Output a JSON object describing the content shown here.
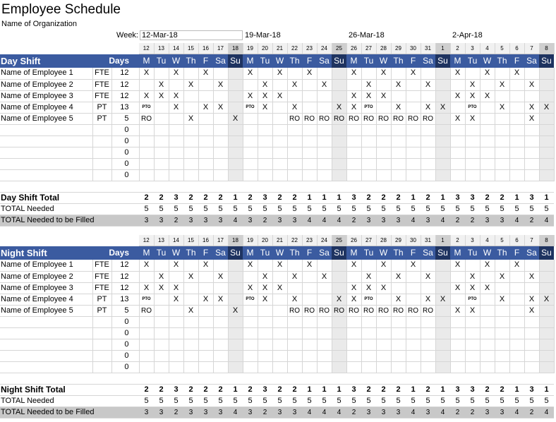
{
  "title": "Employee Schedule",
  "organization": "Name of Organization",
  "week_label": "Week:",
  "week_start": "12-Mar-18",
  "week_dates": [
    "19-Mar-18",
    "26-Mar-18",
    "2-Apr-18"
  ],
  "day_numbers": [
    "12",
    "13",
    "14",
    "15",
    "16",
    "17",
    "18",
    "19",
    "20",
    "21",
    "22",
    "23",
    "24",
    "25",
    "26",
    "27",
    "28",
    "29",
    "30",
    "31",
    "1",
    "2",
    "3",
    "4",
    "5",
    "6",
    "7",
    "8"
  ],
  "day_letters": [
    "M",
    "Tu",
    "W",
    "Th",
    "F",
    "Sa",
    "Su",
    "M",
    "Tu",
    "W",
    "Th",
    "F",
    "Sa",
    "Su",
    "M",
    "Tu",
    "W",
    "Th",
    "F",
    "Sa",
    "Su",
    "M",
    "Tu",
    "W",
    "Th",
    "F",
    "Sa",
    "Su"
  ],
  "weekend_day_numbers": [
    "18",
    "25",
    "1",
    "8"
  ],
  "header_weekend_letters_index": [
    6,
    13,
    20,
    27
  ],
  "days_label": "Days",
  "shifts": [
    {
      "name": "Day Shift",
      "employees": [
        {
          "name": "Name of Employee 1",
          "type": "FTE",
          "days": "12",
          "marks": [
            "X",
            "",
            "X",
            "",
            "X",
            "",
            "",
            "X",
            "",
            "X",
            "",
            "X",
            "",
            "",
            "X",
            "",
            "X",
            "",
            "X",
            "",
            "",
            "X",
            "",
            "X",
            "",
            "X",
            "",
            ""
          ]
        },
        {
          "name": "Name of Employee 2",
          "type": "FTE",
          "days": "12",
          "marks": [
            "",
            "X",
            "",
            "X",
            "",
            "X",
            "",
            "",
            "X",
            "",
            "X",
            "",
            "X",
            "",
            "",
            "X",
            "",
            "X",
            "",
            "X",
            "",
            "",
            "X",
            "",
            "X",
            "",
            "X",
            ""
          ]
        },
        {
          "name": "Name of Employee 3",
          "type": "FTE",
          "days": "12",
          "marks": [
            "X",
            "X",
            "X",
            "",
            "",
            "",
            "",
            "X",
            "X",
            "X",
            "",
            "",
            "",
            "",
            "X",
            "X",
            "X",
            "",
            "",
            "",
            "",
            "X",
            "X",
            "X",
            "",
            "",
            "",
            ""
          ]
        },
        {
          "name": "Name of Employee 4",
          "type": "PT",
          "days": "13",
          "marks": [
            "PTO",
            "",
            "X",
            "",
            "X",
            "X",
            "",
            "PTO",
            "X",
            "",
            "X",
            "",
            "",
            "X",
            "X",
            "PTO",
            "",
            "X",
            "",
            "X",
            "X",
            "",
            "PTO",
            "",
            "X",
            "",
            "X",
            "X"
          ]
        },
        {
          "name": "Name of Employee 5",
          "type": "PT",
          "days": "5",
          "marks": [
            "RO",
            "",
            "",
            "X",
            "",
            "",
            "X",
            "",
            "",
            "",
            "RO",
            "RO",
            "RO",
            "RO",
            "RO",
            "RO",
            "RO",
            "RO",
            "RO",
            "RO",
            "",
            "X",
            "X",
            "",
            "",
            "",
            "X",
            ""
          ]
        },
        {
          "name": "",
          "type": "",
          "days": "0",
          "marks": []
        },
        {
          "name": "",
          "type": "",
          "days": "0",
          "marks": []
        },
        {
          "name": "",
          "type": "",
          "days": "0",
          "marks": []
        },
        {
          "name": "",
          "type": "",
          "days": "0",
          "marks": []
        },
        {
          "name": "",
          "type": "",
          "days": "0",
          "marks": []
        }
      ],
      "total_label": "Day Shift Total",
      "totals": [
        "2",
        "2",
        "3",
        "2",
        "2",
        "2",
        "1",
        "2",
        "3",
        "2",
        "2",
        "1",
        "1",
        "1",
        "3",
        "2",
        "2",
        "2",
        "1",
        "2",
        "1",
        "3",
        "3",
        "2",
        "2",
        "1",
        "3",
        "1"
      ],
      "needed_label": "TOTAL Needed",
      "needed": [
        "5",
        "5",
        "5",
        "5",
        "5",
        "5",
        "5",
        "5",
        "5",
        "5",
        "5",
        "5",
        "5",
        "5",
        "5",
        "5",
        "5",
        "5",
        "5",
        "5",
        "5",
        "5",
        "5",
        "5",
        "5",
        "5",
        "5",
        "5"
      ],
      "to_fill_label": "TOTAL Needed to be Filled",
      "to_fill": [
        "3",
        "3",
        "2",
        "3",
        "3",
        "3",
        "4",
        "3",
        "2",
        "3",
        "3",
        "4",
        "4",
        "4",
        "2",
        "3",
        "3",
        "3",
        "4",
        "3",
        "4",
        "2",
        "2",
        "3",
        "3",
        "4",
        "2",
        "4"
      ]
    },
    {
      "name": "Night Shift",
      "employees": [
        {
          "name": "Name of Employee 1",
          "type": "FTE",
          "days": "12",
          "marks": [
            "X",
            "",
            "X",
            "",
            "X",
            "",
            "",
            "X",
            "",
            "X",
            "",
            "X",
            "",
            "",
            "X",
            "",
            "X",
            "",
            "X",
            "",
            "",
            "X",
            "",
            "X",
            "",
            "X",
            "",
            ""
          ]
        },
        {
          "name": "Name of Employee 2",
          "type": "FTE",
          "days": "12",
          "marks": [
            "",
            "X",
            "",
            "X",
            "",
            "X",
            "",
            "",
            "X",
            "",
            "X",
            "",
            "X",
            "",
            "",
            "X",
            "",
            "X",
            "",
            "X",
            "",
            "",
            "X",
            "",
            "X",
            "",
            "X",
            ""
          ]
        },
        {
          "name": "Name of Employee 3",
          "type": "FTE",
          "days": "12",
          "marks": [
            "X",
            "X",
            "X",
            "",
            "",
            "",
            "",
            "X",
            "X",
            "X",
            "",
            "",
            "",
            "",
            "X",
            "X",
            "X",
            "",
            "",
            "",
            "",
            "X",
            "X",
            "X",
            "",
            "",
            "",
            ""
          ]
        },
        {
          "name": "Name of Employee 4",
          "type": "PT",
          "days": "13",
          "marks": [
            "PTO",
            "",
            "X",
            "",
            "X",
            "X",
            "",
            "PTO",
            "X",
            "",
            "X",
            "",
            "",
            "X",
            "X",
            "PTO",
            "",
            "X",
            "",
            "X",
            "X",
            "",
            "PTO",
            "",
            "X",
            "",
            "X",
            "X"
          ]
        },
        {
          "name": "Name of Employee 5",
          "type": "PT",
          "days": "5",
          "marks": [
            "RO",
            "",
            "",
            "X",
            "",
            "",
            "X",
            "",
            "",
            "",
            "RO",
            "RO",
            "RO",
            "RO",
            "RO",
            "RO",
            "RO",
            "RO",
            "RO",
            "RO",
            "",
            "X",
            "X",
            "",
            "",
            "",
            "X",
            ""
          ]
        },
        {
          "name": "",
          "type": "",
          "days": "0",
          "marks": []
        },
        {
          "name": "",
          "type": "",
          "days": "0",
          "marks": []
        },
        {
          "name": "",
          "type": "",
          "days": "0",
          "marks": []
        },
        {
          "name": "",
          "type": "",
          "days": "0",
          "marks": []
        },
        {
          "name": "",
          "type": "",
          "days": "0",
          "marks": []
        }
      ],
      "total_label": "Night Shift Total",
      "totals": [
        "2",
        "2",
        "3",
        "2",
        "2",
        "2",
        "1",
        "2",
        "3",
        "2",
        "2",
        "1",
        "1",
        "1",
        "3",
        "2",
        "2",
        "2",
        "1",
        "2",
        "1",
        "3",
        "3",
        "2",
        "2",
        "1",
        "3",
        "1"
      ],
      "needed_label": "TOTAL Needed",
      "needed": [
        "5",
        "5",
        "5",
        "5",
        "5",
        "5",
        "5",
        "5",
        "5",
        "5",
        "5",
        "5",
        "5",
        "5",
        "5",
        "5",
        "5",
        "5",
        "5",
        "5",
        "5",
        "5",
        "5",
        "5",
        "5",
        "5",
        "5",
        "5"
      ],
      "to_fill_label": "TOTAL Needed to be Filled",
      "to_fill": [
        "3",
        "3",
        "2",
        "3",
        "3",
        "3",
        "4",
        "3",
        "2",
        "3",
        "3",
        "4",
        "4",
        "4",
        "2",
        "3",
        "3",
        "3",
        "4",
        "3",
        "4",
        "2",
        "2",
        "3",
        "3",
        "4",
        "2",
        "4"
      ]
    }
  ],
  "colors": {
    "header_bg": "#3b5ba0",
    "header_weekend": "#1e3360",
    "weekend_cell": "#eaeaea",
    "to_fill_bg": "#c8c8c8"
  }
}
